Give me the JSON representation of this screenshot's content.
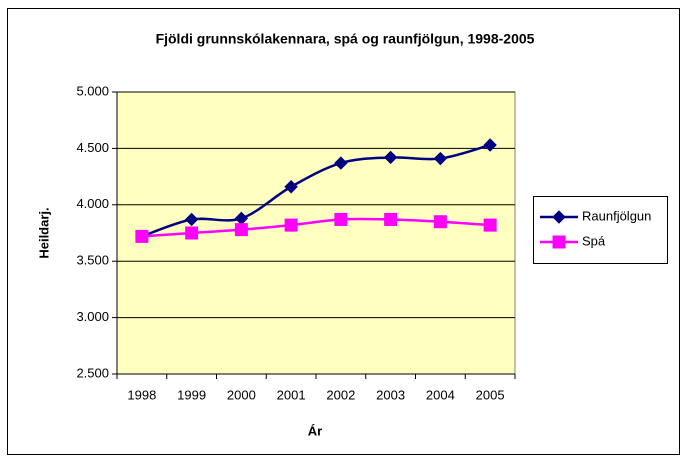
{
  "chart_data": {
    "type": "line",
    "title": "Fjöldi grunnskólakennara, spá og raunfjölgun, 1998-2005",
    "x_label": "Ár",
    "y_label": "Heildarj.",
    "categories": [
      "1998",
      "1999",
      "2000",
      "2001",
      "2002",
      "2003",
      "2004",
      "2005"
    ],
    "series": [
      {
        "name": "Raunfjölgun",
        "color": "#000080",
        "marker": "diamond",
        "values": [
          3720,
          3870,
          3880,
          4160,
          4370,
          4420,
          4410,
          4530
        ]
      },
      {
        "name": "Spá",
        "color": "#ff00ff",
        "marker": "square",
        "values": [
          3720,
          3750,
          3780,
          3820,
          3870,
          3870,
          3850,
          3820
        ]
      }
    ],
    "ylim": [
      2500,
      5000
    ],
    "yticks": [
      {
        "value": 2500,
        "label": "2.500"
      },
      {
        "value": 3000,
        "label": "3.000"
      },
      {
        "value": 3500,
        "label": "3.500"
      },
      {
        "value": 4000,
        "label": "4.000"
      },
      {
        "value": 4500,
        "label": "4.500"
      },
      {
        "value": 5000,
        "label": "5.000"
      }
    ],
    "grid": true,
    "smooth": true,
    "legend": "right",
    "plot_background": "#ffffc0"
  }
}
